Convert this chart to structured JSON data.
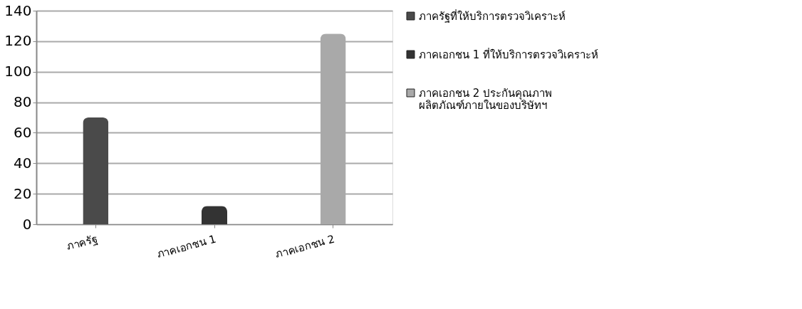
{
  "chart_data": {
    "type": "bar",
    "categories": [
      "ภาครัฐ",
      "ภาคเอกชน 1",
      "ภาคเอกชน 2"
    ],
    "series": [
      {
        "name": "ภาครัฐที่ให้บริการตรวจวิเคราะห์",
        "color": "#4a4a4a",
        "values": [
          70,
          null,
          null
        ]
      },
      {
        "name": "ภาคเอกชน 1 ที่ให้บริการตรวจวิเคราะห์",
        "color": "#333333",
        "values": [
          null,
          12,
          null
        ]
      },
      {
        "name": "ภาคเอกชน 2 ประกันคุณภาพ\nผลิตภัณฑ์ภายในของบริษัทฯ",
        "color": "#a9a9a9",
        "values": [
          null,
          null,
          125
        ]
      }
    ],
    "ylim": [
      0,
      140
    ],
    "yticks": [
      0,
      20,
      40,
      60,
      80,
      100,
      120,
      140
    ],
    "grid": "y",
    "legend": "right"
  }
}
